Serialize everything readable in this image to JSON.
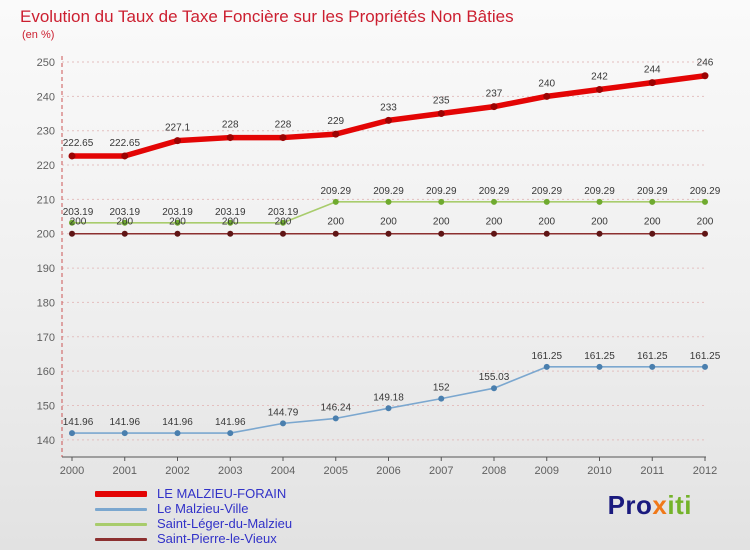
{
  "header": {
    "title": "Evolution du Taux de Taxe Foncière sur les Propriétés Non Bâties",
    "subtitle": "(en %)"
  },
  "colors": {
    "title": "#cc1f30",
    "grid": "#e4bfbf",
    "y_axis": "#cc5555",
    "x_axis": "#555555",
    "tick_text": "#606060",
    "data_label_text": "#383838",
    "legend_text": "#3232c8"
  },
  "chart_data": {
    "type": "line",
    "title": "Evolution du Taux de Taxe Foncière sur les Propriétés Non Bâties",
    "ylabel": "en %",
    "xlabel": "",
    "grid": true,
    "legend_position": "bottom-left",
    "x": [
      2000,
      2001,
      2002,
      2003,
      2004,
      2005,
      2006,
      2007,
      2008,
      2009,
      2010,
      2011,
      2012
    ],
    "ylim": [
      135,
      250
    ],
    "yticks": [
      140,
      150,
      160,
      170,
      180,
      190,
      200,
      210,
      220,
      230,
      240,
      250
    ],
    "series": [
      {
        "name": "LE MALZIEU-FORAIN",
        "color": "#e30505",
        "point_color": "#9c0303",
        "width": 5.5,
        "point_r": 3.5,
        "label_dy": 10,
        "values": [
          222.65,
          222.65,
          227.1,
          228,
          228,
          229,
          233,
          235,
          237,
          240,
          242,
          244,
          246
        ],
        "labels": [
          "222.65",
          "222.65",
          "227.1",
          "228",
          "228",
          "229",
          "233",
          "235",
          "237",
          "240",
          "242",
          "244",
          "246"
        ]
      },
      {
        "name": "Le Malzieu-Ville",
        "color": "#7ba7cf",
        "point_color": "#4a7fae",
        "width": 1.6,
        "point_r": 3,
        "label_dy": 8,
        "values": [
          141.96,
          141.96,
          141.96,
          141.96,
          144.79,
          146.24,
          149.18,
          152,
          155.03,
          161.25,
          161.25,
          161.25,
          161.25
        ],
        "labels": [
          "141.96",
          "141.96",
          "141.96",
          "141.96",
          "144.79",
          "146.24",
          "149.18",
          "152",
          "155.03",
          "161.25",
          "161.25",
          "161.25",
          "161.25"
        ]
      },
      {
        "name": "Saint-Léger-du-Malzieu",
        "color": "#a8cc6c",
        "point_color": "#6faa2f",
        "width": 1.6,
        "point_r": 3,
        "label_dy": 8,
        "values": [
          203.19,
          203.19,
          203.19,
          203.19,
          203.19,
          209.29,
          209.29,
          209.29,
          209.29,
          209.29,
          209.29,
          209.29,
          209.29
        ],
        "labels": [
          "203.19",
          "203.19",
          "203.19",
          "203.19",
          "203.19",
          "209.29",
          "209.29",
          "209.29",
          "209.29",
          "209.29",
          "209.29",
          "209.29",
          "209.29"
        ]
      },
      {
        "name": "Saint-Pierre-le-Vieux",
        "color": "#8c3030",
        "point_color": "#5f1515",
        "width": 1.6,
        "point_r": 3,
        "label_dy": 9,
        "values": [
          200,
          200,
          200,
          200,
          200,
          200,
          200,
          200,
          200,
          200,
          200,
          200,
          200
        ],
        "labels": [
          "200",
          "200",
          "200",
          "200",
          "200",
          "200",
          "200",
          "200",
          "200",
          "200",
          "200",
          "200",
          "200"
        ]
      }
    ]
  },
  "legend": {
    "items": [
      {
        "label": "LE MALZIEU-FORAIN",
        "color": "#e30505",
        "thick": true
      },
      {
        "label": "Le Malzieu-Ville",
        "color": "#7ba7cf",
        "thick": false
      },
      {
        "label": "Saint-Léger-du-Malzieu",
        "color": "#a8cc6c",
        "thick": false
      },
      {
        "label": "Saint-Pierre-le-Vieux",
        "color": "#8c3030",
        "thick": false
      }
    ]
  },
  "logo": {
    "text": "Proxiti",
    "parts": [
      {
        "text": "Pro",
        "color": "#1a1a7e"
      },
      {
        "text": "x",
        "color": "#f07818"
      },
      {
        "text": "iti",
        "color": "#74b32a"
      }
    ]
  }
}
